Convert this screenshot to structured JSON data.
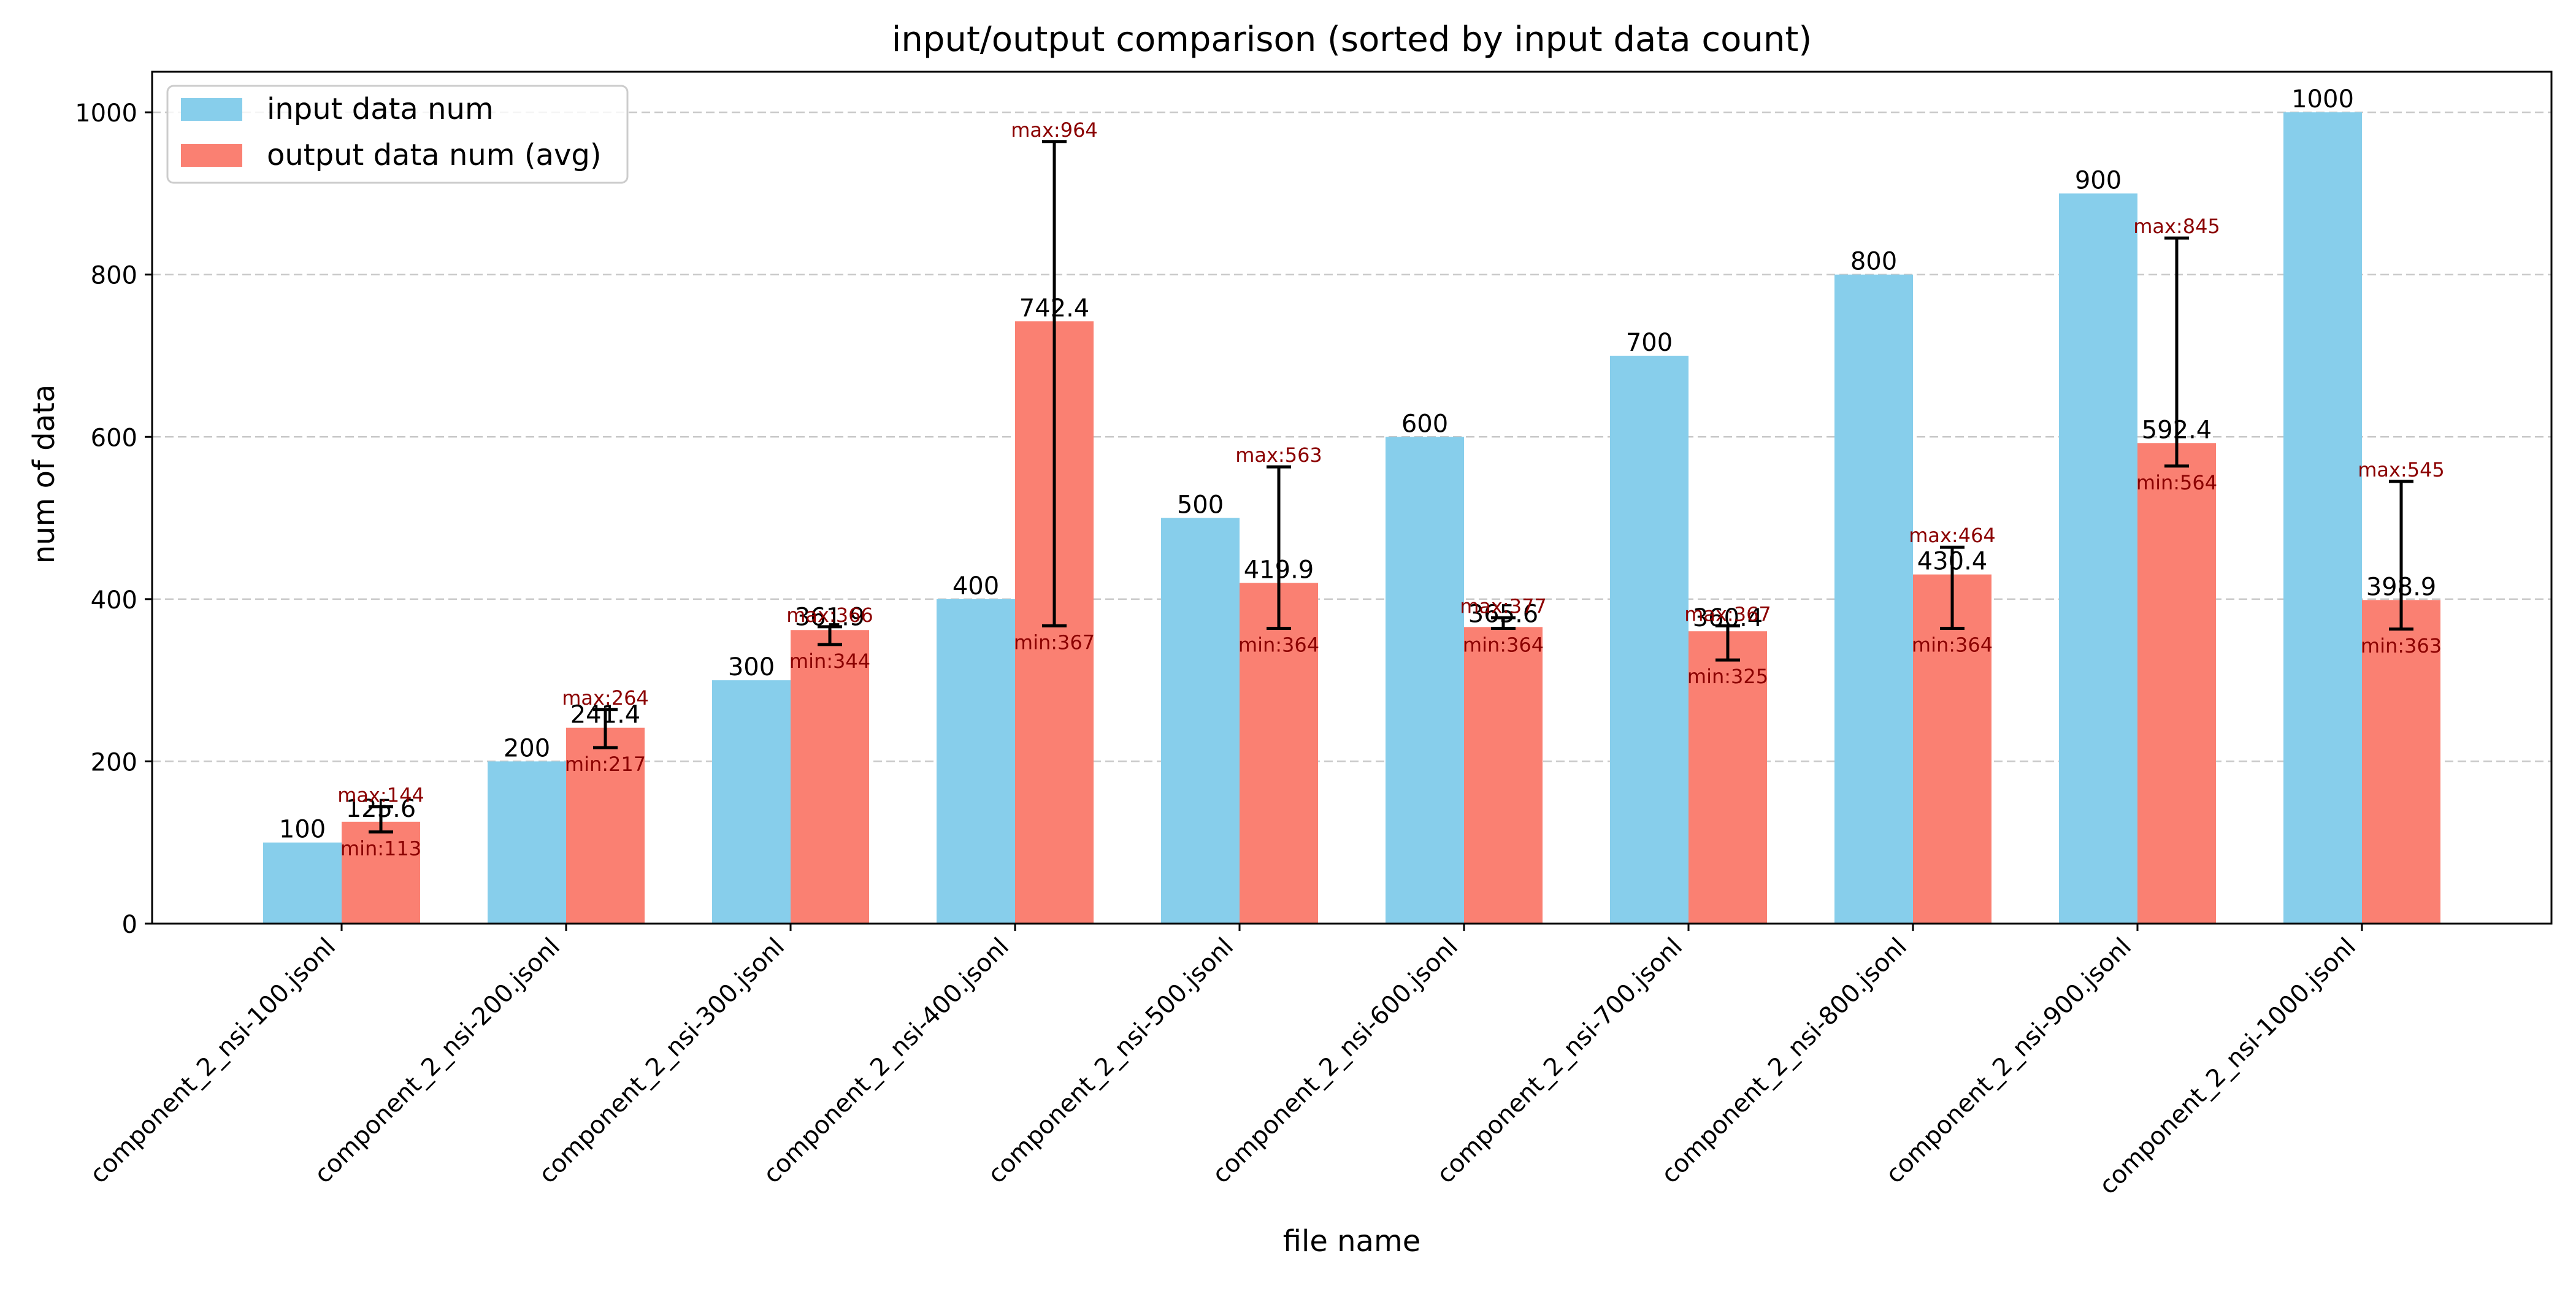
{
  "chart_data": {
    "type": "bar",
    "title": "input/output comparison (sorted by input data count)",
    "xlabel": "file name",
    "ylabel": "num of data",
    "ylim": [
      0,
      1050
    ],
    "yticks": [
      0,
      200,
      400,
      600,
      800,
      1000
    ],
    "grid": "y-dashed",
    "legend_position": "top-left",
    "colors": {
      "input": "#87ceeb",
      "output": "#fa8072",
      "minmax_text": "#8b0000"
    },
    "categories": [
      "component_2_nsi-100.jsonl",
      "component_2_nsi-200.jsonl",
      "component_2_nsi-300.jsonl",
      "component_2_nsi-400.jsonl",
      "component_2_nsi-500.jsonl",
      "component_2_nsi-600.jsonl",
      "component_2_nsi-700.jsonl",
      "component_2_nsi-800.jsonl",
      "component_2_nsi-900.jsonl",
      "component_2_nsi-1000.jsonl"
    ],
    "series": [
      {
        "name": "input data num",
        "values": [
          100,
          200,
          300,
          400,
          500,
          600,
          700,
          800,
          900,
          1000
        ],
        "labels": [
          "100",
          "200",
          "300",
          "400",
          "500",
          "600",
          "700",
          "800",
          "900",
          "1000"
        ]
      },
      {
        "name": "output data num (avg)",
        "values": [
          125.6,
          241.4,
          361.9,
          742.4,
          419.9,
          365.6,
          360.4,
          430.4,
          592.4,
          398.9
        ],
        "labels": [
          "125.6",
          "241.4",
          "361.9",
          "742.4",
          "419.9",
          "365.6",
          "360.4",
          "430.4",
          "592.4",
          "398.9"
        ],
        "min": [
          113,
          217,
          344,
          367,
          364,
          364,
          325,
          364,
          564,
          363
        ],
        "max": [
          144,
          264,
          366,
          964,
          563,
          377,
          367,
          464,
          845,
          545
        ],
        "min_labels": [
          "min:113",
          "min:217",
          "min:344",
          "min:367",
          "min:364",
          "min:364",
          "min:325",
          "min:364",
          "min:564",
          "min:363"
        ],
        "max_labels": [
          "max:144",
          "max:264",
          "max:366",
          "max:964",
          "max:563",
          "max:377",
          "max:367",
          "max:464",
          "max:845",
          "max:545"
        ]
      }
    ]
  }
}
